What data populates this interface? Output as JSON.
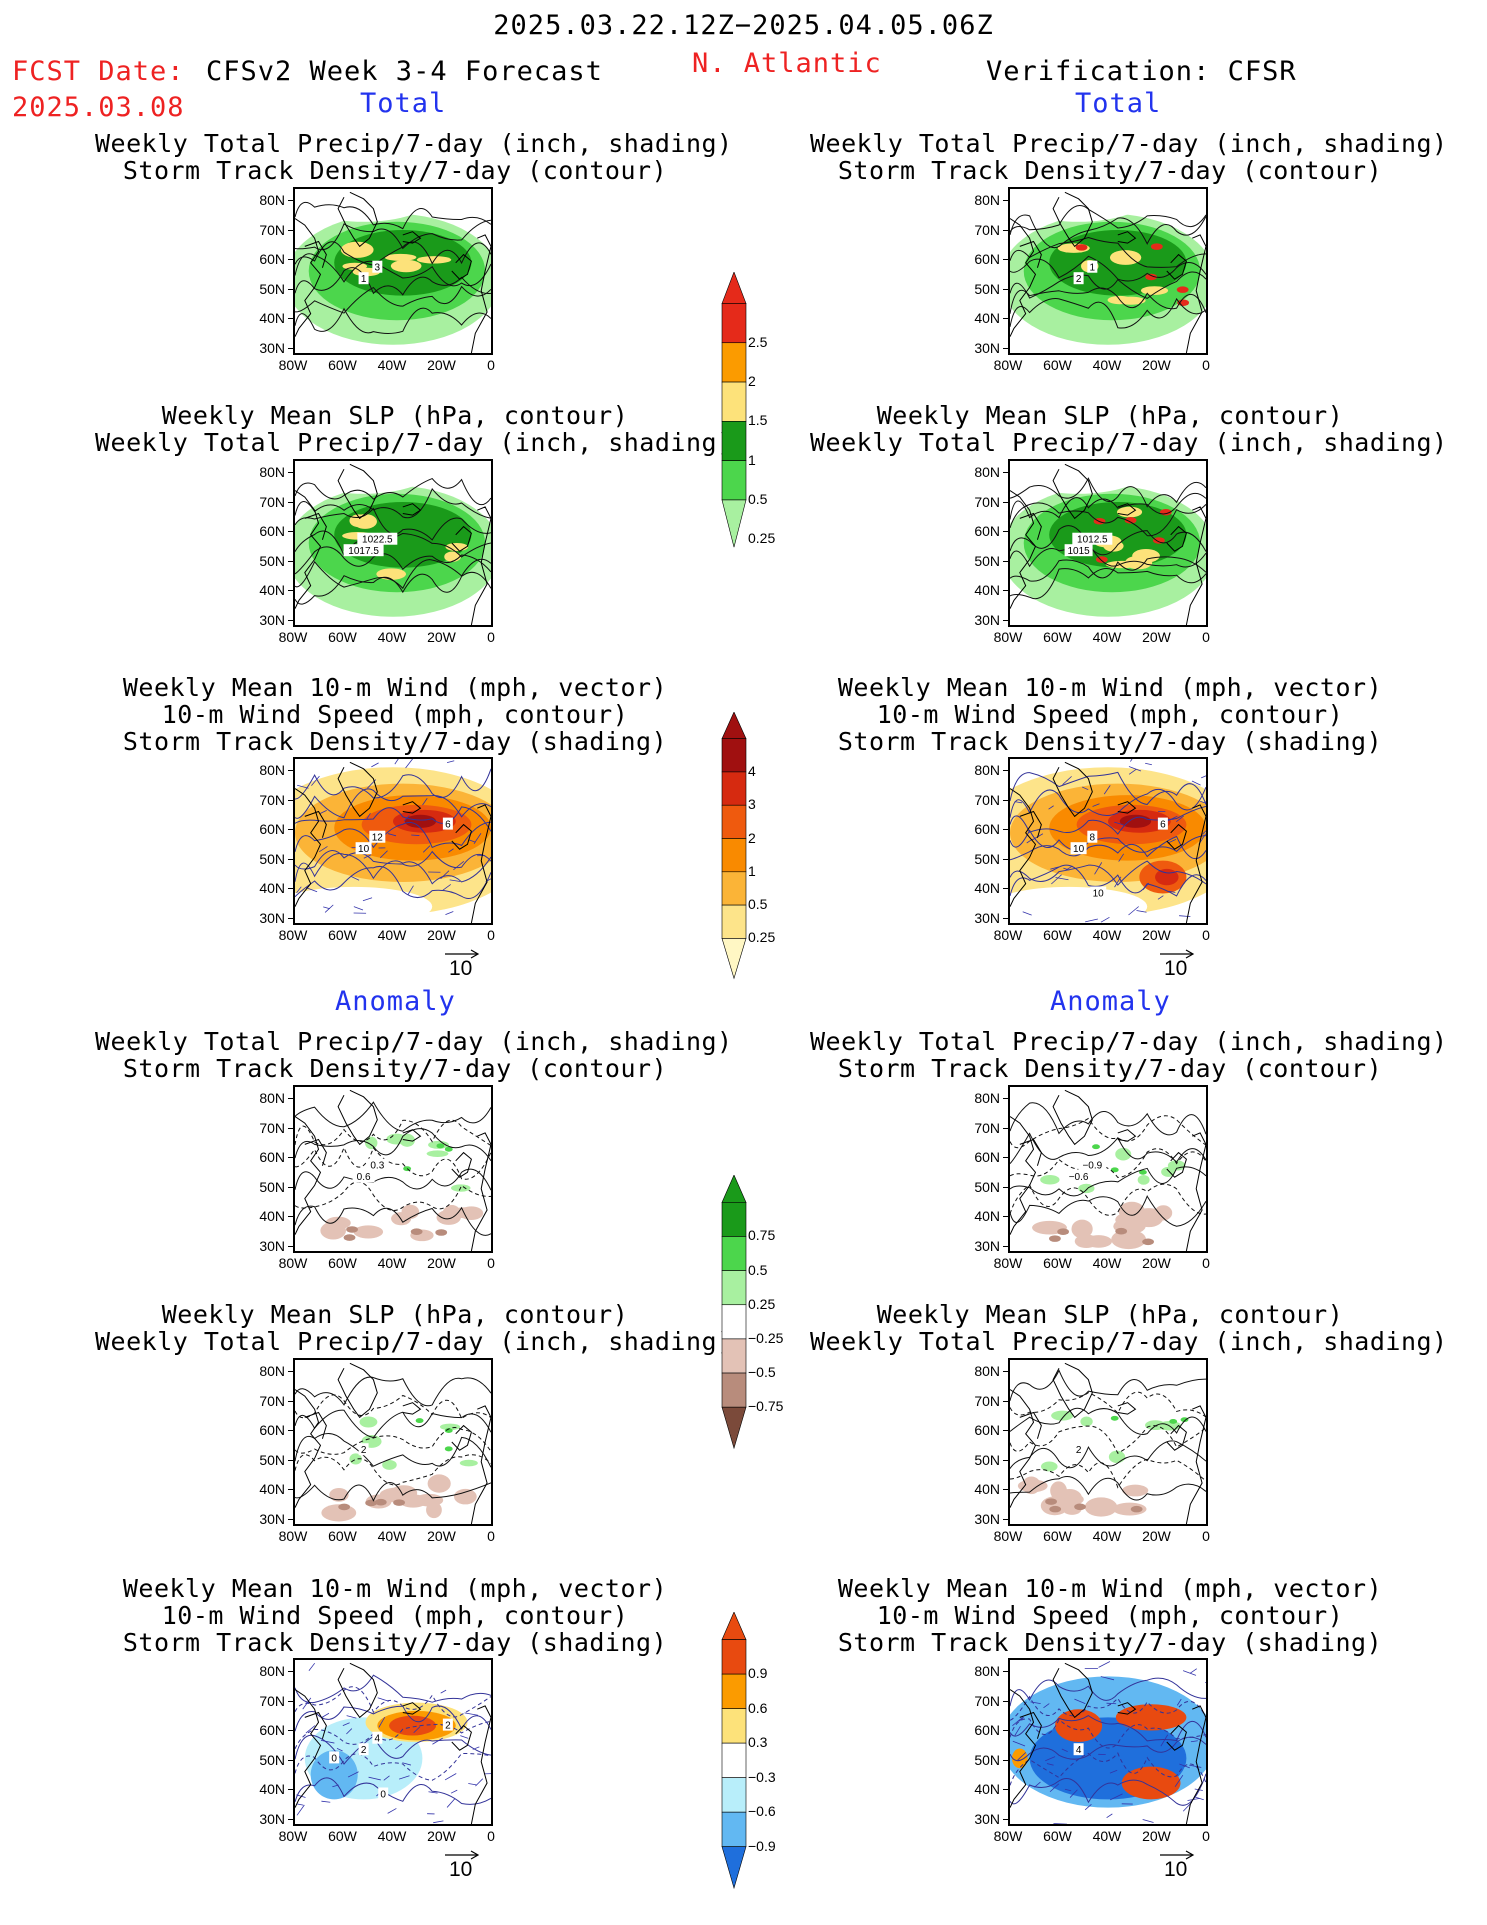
{
  "header": {
    "period": "2025.03.22.12Z−2025.04.05.06Z",
    "fcst_label": "FCST Date:",
    "fcst_date": "2025.03.08",
    "forecast_title": "CFSv2 Week 3-4 Forecast",
    "region": "N. Atlantic",
    "verification": "Verification: CFSR"
  },
  "sections": {
    "total": "Total",
    "anomaly": "Anomaly"
  },
  "titles": {
    "precip_storm": [
      "Weekly Total Precip/7-day (inch, shading)",
      "Storm Track Density/7-day (contour)"
    ],
    "slp_precip": [
      "Weekly Mean SLP (hPa, contour)",
      "Weekly Total Precip/7-day (inch, shading)"
    ],
    "wind_storm": [
      "Weekly Mean 10-m Wind (mph, vector)",
      "10-m Wind Speed (mph, contour)",
      "Storm Track Density/7-day (shading)"
    ]
  },
  "axes": {
    "lat_ticks": [
      "80N",
      "70N",
      "60N",
      "50N",
      "40N",
      "30N"
    ],
    "lon_ticks": [
      "80W",
      "60W",
      "40W",
      "20W",
      "0"
    ]
  },
  "vector_reference": "10",
  "contour_labels": {
    "fc_total_precip": [
      "1",
      "3"
    ],
    "vf_total_precip": [
      "2",
      "1"
    ],
    "fc_total_slp": [
      "1017.5",
      "1022.5"
    ],
    "vf_total_slp": [
      "1015",
      "1012.5"
    ],
    "fc_total_wind": [
      "10",
      "12",
      "6"
    ],
    "vf_total_wind": [
      "10",
      "8",
      "6",
      "10"
    ],
    "fc_anom_precip": [
      "0.6",
      "0.3"
    ],
    "vf_anom_precip": [
      "−0.6",
      "−0.9"
    ],
    "fc_anom_slp": [
      "2"
    ],
    "vf_anom_slp": [
      "2"
    ],
    "fc_anom_wind": [
      "2",
      "4",
      "2",
      "0",
      "0"
    ],
    "vf_anom_wind": [
      "4"
    ]
  },
  "colorbars": {
    "precip_total": {
      "labels": [
        "2.5",
        "2",
        "1.5",
        "1",
        "0.5",
        "0.25"
      ],
      "colors": [
        "#e52a1a",
        "#fb9b00",
        "#fde27a",
        "#1a9a1a",
        "#4cd64c",
        "#a8f0a0"
      ]
    },
    "storm_total": {
      "labels": [
        "4",
        "3",
        "2",
        "1",
        "0.5",
        "0.25"
      ],
      "colors": [
        "#a01010",
        "#d62a10",
        "#ef5a0e",
        "#f98a00",
        "#fbb437",
        "#fde48a",
        "#fff7c4"
      ]
    },
    "precip_anom": {
      "labels": [
        "0.75",
        "0.5",
        "0.25",
        "−0.25",
        "−0.5",
        "−0.75"
      ],
      "colors": [
        "#1a9a1a",
        "#4cd64c",
        "#a8f0a0",
        "#ffffff",
        "#e3c2b6",
        "#b88c7c",
        "#7b4a3a"
      ]
    },
    "storm_anom": {
      "labels": [
        "0.9",
        "0.6",
        "0.3",
        "−0.3",
        "−0.6",
        "−0.9"
      ],
      "colors": [
        "#e84a10",
        "#fb9b00",
        "#fde27a",
        "#ffffff",
        "#b8eefa",
        "#62b8f2",
        "#1f6fdc"
      ]
    }
  },
  "colors": {
    "header_red": "#ee2222",
    "section_blue": "#2233ee"
  }
}
